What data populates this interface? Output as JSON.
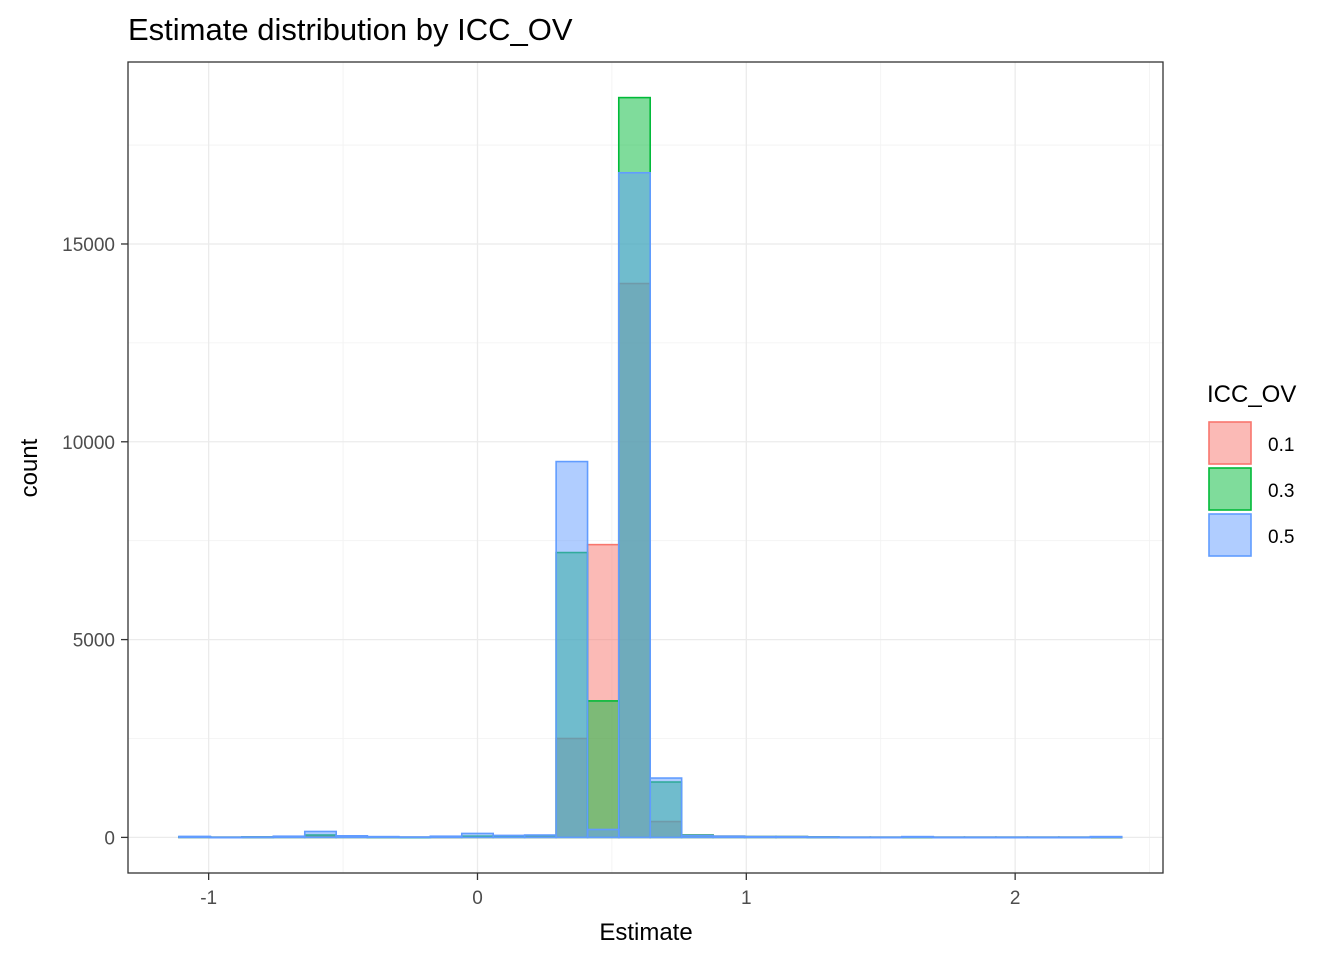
{
  "chart_data": {
    "type": "bar",
    "subtype": "overlapping-histogram",
    "title": "Estimate distribution by ICC_OV",
    "xlabel": "Estimate",
    "ylabel": "count",
    "xlim": [
      -1.3,
      2.55
    ],
    "ylim": [
      -900,
      19600
    ],
    "x_ticks": [
      -1,
      0,
      1,
      2
    ],
    "x_tick_labels": [
      "-1",
      "0",
      "1",
      "2"
    ],
    "y_ticks": [
      0,
      5000,
      10000,
      15000
    ],
    "y_tick_labels": [
      "0",
      "5000",
      "10000",
      "15000"
    ],
    "grid": true,
    "legend": {
      "title": "ICC_OV",
      "position": "right"
    },
    "bin_width": 0.1169,
    "bin_centers": [
      -1.052,
      -0.935,
      -0.818,
      -0.701,
      -0.584,
      -0.468,
      -0.351,
      -0.234,
      -0.117,
      0.0,
      0.117,
      0.234,
      0.351,
      0.468,
      0.584,
      0.701,
      0.818,
      0.935,
      1.052,
      1.169,
      1.286,
      1.403,
      1.52,
      1.637,
      1.753,
      1.87,
      1.987,
      2.104,
      2.221,
      2.338
    ],
    "series": [
      {
        "name": "0.1",
        "color": "#F8766D",
        "values": [
          15,
          5,
          10,
          20,
          40,
          15,
          10,
          5,
          10,
          20,
          30,
          40,
          2500,
          7400,
          14000,
          400,
          60,
          30,
          20,
          20,
          10,
          5,
          5,
          10,
          5,
          5,
          5,
          5,
          5,
          5
        ]
      },
      {
        "name": "0.3",
        "color": "#00BA38",
        "values": [
          15,
          5,
          10,
          20,
          60,
          20,
          10,
          5,
          15,
          30,
          40,
          50,
          7200,
          3450,
          18700,
          1400,
          60,
          30,
          20,
          20,
          10,
          5,
          5,
          10,
          5,
          5,
          5,
          5,
          5,
          10
        ]
      },
      {
        "name": "0.5",
        "color": "#619CFF",
        "values": [
          25,
          5,
          10,
          30,
          150,
          40,
          20,
          10,
          30,
          100,
          50,
          60,
          9500,
          200,
          16800,
          1500,
          50,
          30,
          20,
          20,
          10,
          5,
          5,
          20,
          5,
          5,
          5,
          5,
          5,
          20
        ]
      }
    ]
  }
}
